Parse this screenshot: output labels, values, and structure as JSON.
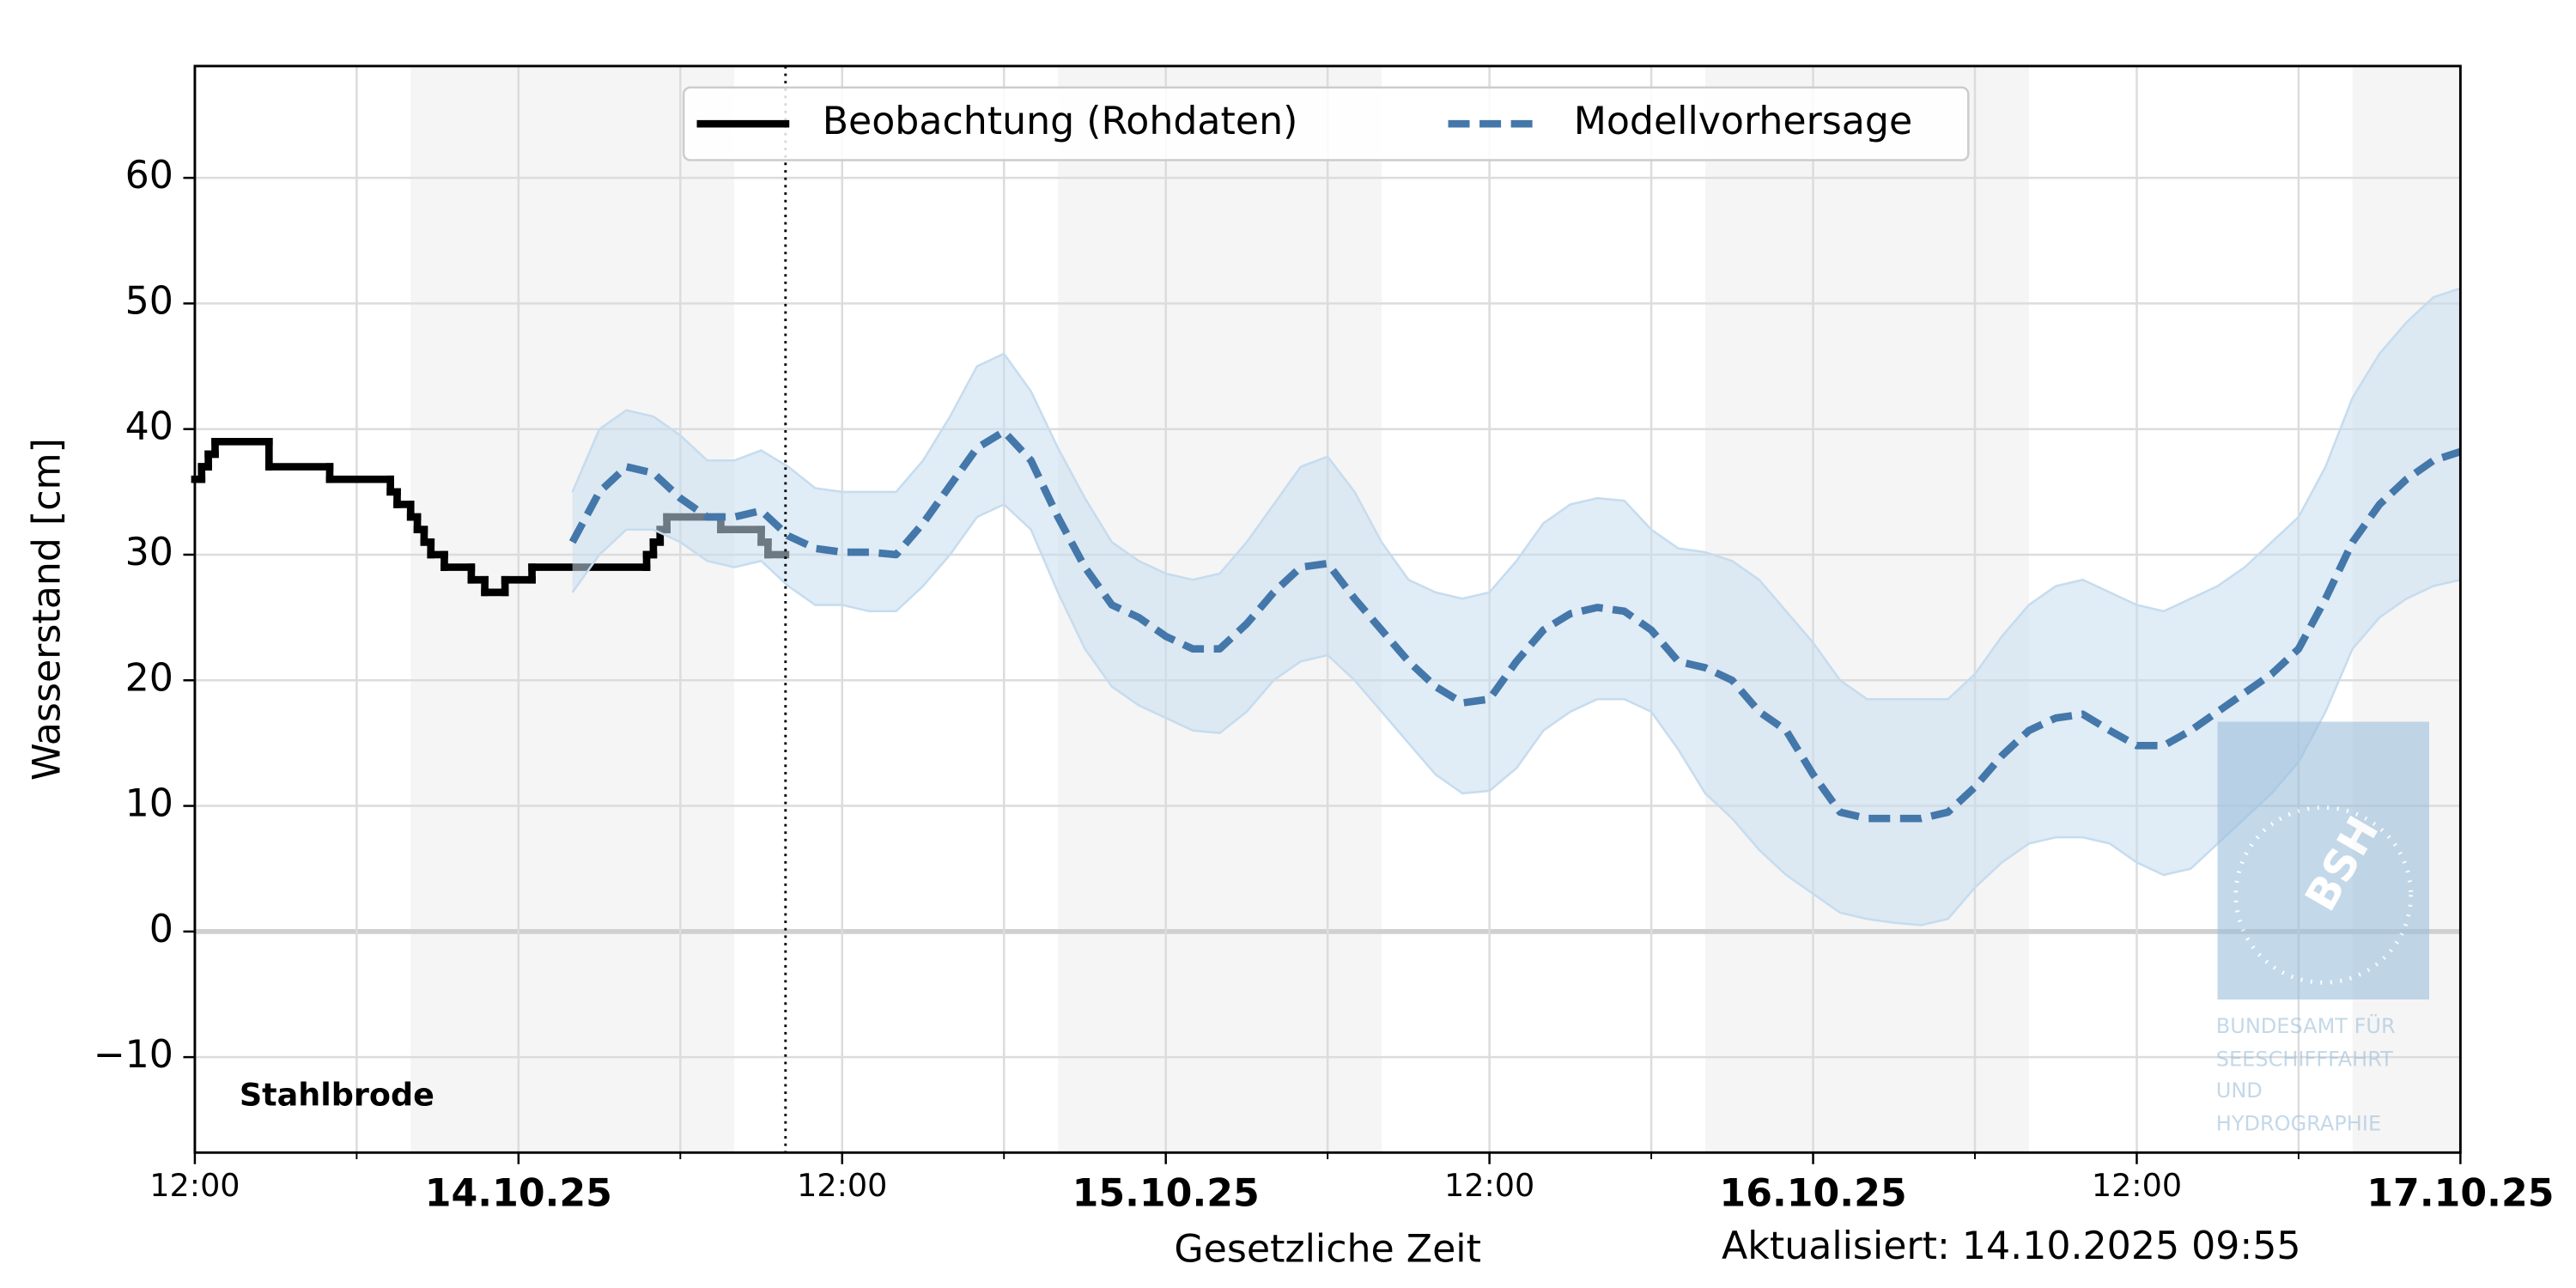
{
  "chart_data": {
    "type": "line",
    "ylabel": "Wasserstand [cm]",
    "xlabel": "Gesetzliche Zeit",
    "station": "Stahlbrode",
    "updated": "Aktualisiert: 14.10.2025 09:55",
    "now_line": 21.9,
    "xlim": [
      0,
      84
    ],
    "xticks": [
      {
        "value": 0,
        "label": "12:00"
      },
      {
        "value": 12,
        "label": "14.10.25"
      },
      {
        "value": 24,
        "label": "12:00"
      },
      {
        "value": 36,
        "label": "15.10.25"
      },
      {
        "value": 48,
        "label": "12:00"
      },
      {
        "value": 60,
        "label": "16.10.25"
      },
      {
        "value": 72,
        "label": "12:00"
      },
      {
        "value": 84,
        "label": "17.10.25"
      }
    ],
    "xminor": [
      6,
      18,
      30,
      42,
      54,
      66,
      78
    ],
    "ylim": [
      -17.6,
      68.9
    ],
    "yticks": [
      {
        "value": -10,
        "label": "−10"
      },
      0,
      10,
      20,
      30,
      40,
      50,
      60
    ],
    "grid": true,
    "night_bands": [
      [
        8,
        20
      ],
      [
        32,
        44
      ],
      [
        56,
        68
      ],
      [
        80,
        84
      ]
    ],
    "legend": "upper center",
    "series": [
      {
        "name": "Beobachtung (Rohdaten)",
        "color": "#000000",
        "step": true,
        "x": [
          0,
          0.25,
          0.5,
          0.75,
          2.75,
          5,
          7.25,
          7.5,
          8,
          8.25,
          8.5,
          8.75,
          9.25,
          10.25,
          10.75,
          11.5,
          12.5,
          16.75,
          17,
          17.25,
          17.5,
          19.5,
          21,
          21.25
        ],
        "values": [
          36,
          37,
          38,
          39,
          37,
          36,
          35,
          34,
          33,
          32,
          31,
          30,
          29,
          28,
          27,
          28,
          29,
          30,
          31,
          32,
          33,
          32,
          31,
          30
        ]
      },
      {
        "name": "Modellvorhersage",
        "color": "#4477aa",
        "band_color": "#c6dcee",
        "dashed": true,
        "x": [
          14,
          15,
          16,
          17,
          18,
          19,
          20,
          21,
          22,
          23,
          24,
          25,
          26,
          27,
          28,
          29,
          30,
          31,
          32,
          33,
          34,
          35,
          36,
          37,
          38,
          39,
          40,
          41,
          42,
          43,
          44,
          45,
          46,
          47,
          48,
          49,
          50,
          51,
          52,
          53,
          54,
          55,
          56,
          57,
          58,
          59,
          60,
          61,
          62,
          63,
          64,
          65,
          66,
          67,
          68,
          69,
          70,
          71,
          72,
          73,
          74,
          75,
          76,
          77,
          78,
          79,
          80,
          81,
          82,
          83,
          84
        ],
        "values": [
          31,
          35,
          37,
          36.5,
          34.5,
          33,
          33,
          33.5,
          31.5,
          30.5,
          30.2,
          30.2,
          30,
          32.5,
          35.5,
          38.5,
          39.8,
          37.5,
          33,
          29,
          26,
          25,
          23.5,
          22.5,
          22.5,
          24.5,
          27,
          29,
          29.3,
          26.5,
          24,
          21.5,
          19.5,
          18.2,
          18.5,
          21.5,
          24,
          25.3,
          25.8,
          25.5,
          24,
          21.5,
          21,
          20,
          17.5,
          16,
          12.5,
          9.5,
          9,
          9,
          9,
          9.5,
          11.5,
          14,
          16,
          17,
          17.3,
          16,
          14.8,
          14.8,
          16,
          17.5,
          19,
          20.5,
          22.5,
          26.5,
          31,
          34,
          36,
          37.5,
          38.2
        ],
        "lower": [
          27,
          30,
          32,
          32,
          31,
          29.5,
          29,
          29.5,
          27.5,
          26,
          26,
          25.5,
          25.5,
          27.5,
          30,
          33,
          34,
          32,
          27,
          22.5,
          19.5,
          18,
          17,
          16,
          15.8,
          17.5,
          20,
          21.5,
          22,
          20,
          17.5,
          15,
          12.5,
          11,
          11.2,
          13,
          16,
          17.5,
          18.5,
          18.5,
          17.5,
          14.5,
          11,
          9,
          6.5,
          4.5,
          3,
          1.5,
          1,
          0.7,
          0.5,
          1,
          3.5,
          5.5,
          7,
          7.5,
          7.5,
          7,
          5.5,
          4.5,
          5,
          7,
          9,
          11,
          13.5,
          17.5,
          22.5,
          25,
          26.5,
          27.5,
          28
        ],
        "upper": [
          35,
          40,
          41.5,
          41,
          39.5,
          37.5,
          37.5,
          38.3,
          37,
          35.3,
          35,
          35,
          35,
          37.5,
          41,
          45,
          46,
          43,
          38.5,
          34.5,
          31,
          29.5,
          28.5,
          28,
          28.5,
          31,
          34,
          37,
          37.8,
          35,
          31,
          28,
          27,
          26.5,
          27,
          29.5,
          32.5,
          34,
          34.5,
          34.3,
          32,
          30.5,
          30.2,
          29.5,
          28,
          25.5,
          23,
          20,
          18.5,
          18.5,
          18.5,
          18.5,
          20.5,
          23.5,
          26,
          27.5,
          28,
          27,
          26,
          25.5,
          26.5,
          27.5,
          29,
          31,
          33,
          37,
          42.5,
          46,
          48.5,
          50.5,
          51.2
        ]
      }
    ],
    "logo": {
      "mark": "BSH",
      "lines": [
        "BUNDESAMT FÜR",
        "SEESCHIFFFAHRT",
        "UND",
        "HYDROGRAPHIE"
      ]
    }
  }
}
